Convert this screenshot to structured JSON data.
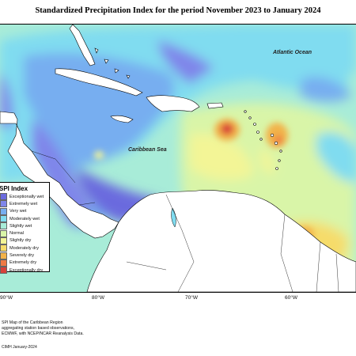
{
  "title": "Standardized Precipitation Index for the period November 2023 to January 2024",
  "map_labels": {
    "atlantic": "Atlantic Ocean",
    "caribbean": "Caribbean Sea"
  },
  "legend": {
    "title": "SPI Index",
    "items": [
      {
        "label": "Exceptionally wet",
        "color": "#6b6bde"
      },
      {
        "label": "Extremely wet",
        "color": "#7f86ea"
      },
      {
        "label": "Very wet",
        "color": "#77aef0"
      },
      {
        "label": "Moderately wet",
        "color": "#80dcf0"
      },
      {
        "label": "Slightly wet",
        "color": "#a8ecd8"
      },
      {
        "label": "Normal",
        "color": "#d9f5a8"
      },
      {
        "label": "Slightly dry",
        "color": "#f3f596"
      },
      {
        "label": "Moderately dry",
        "color": "#f6dc6a"
      },
      {
        "label": "Severely dry",
        "color": "#f2b24a"
      },
      {
        "label": "Extremely dry",
        "color": "#ee7a45"
      },
      {
        "label": "Exceptionally dry",
        "color": "#d8413a"
      }
    ]
  },
  "longitudes": [
    "90°W",
    "80°W",
    "70°W",
    "60°W"
  ],
  "footer": {
    "line1": "SPI Map of the Caribbean Region",
    "line2": "aggregating station based observations,",
    "line3": "ECMWF, with NCEP/NCAR Reanalysis Data.",
    "credit": "CIMH January-2024"
  }
}
